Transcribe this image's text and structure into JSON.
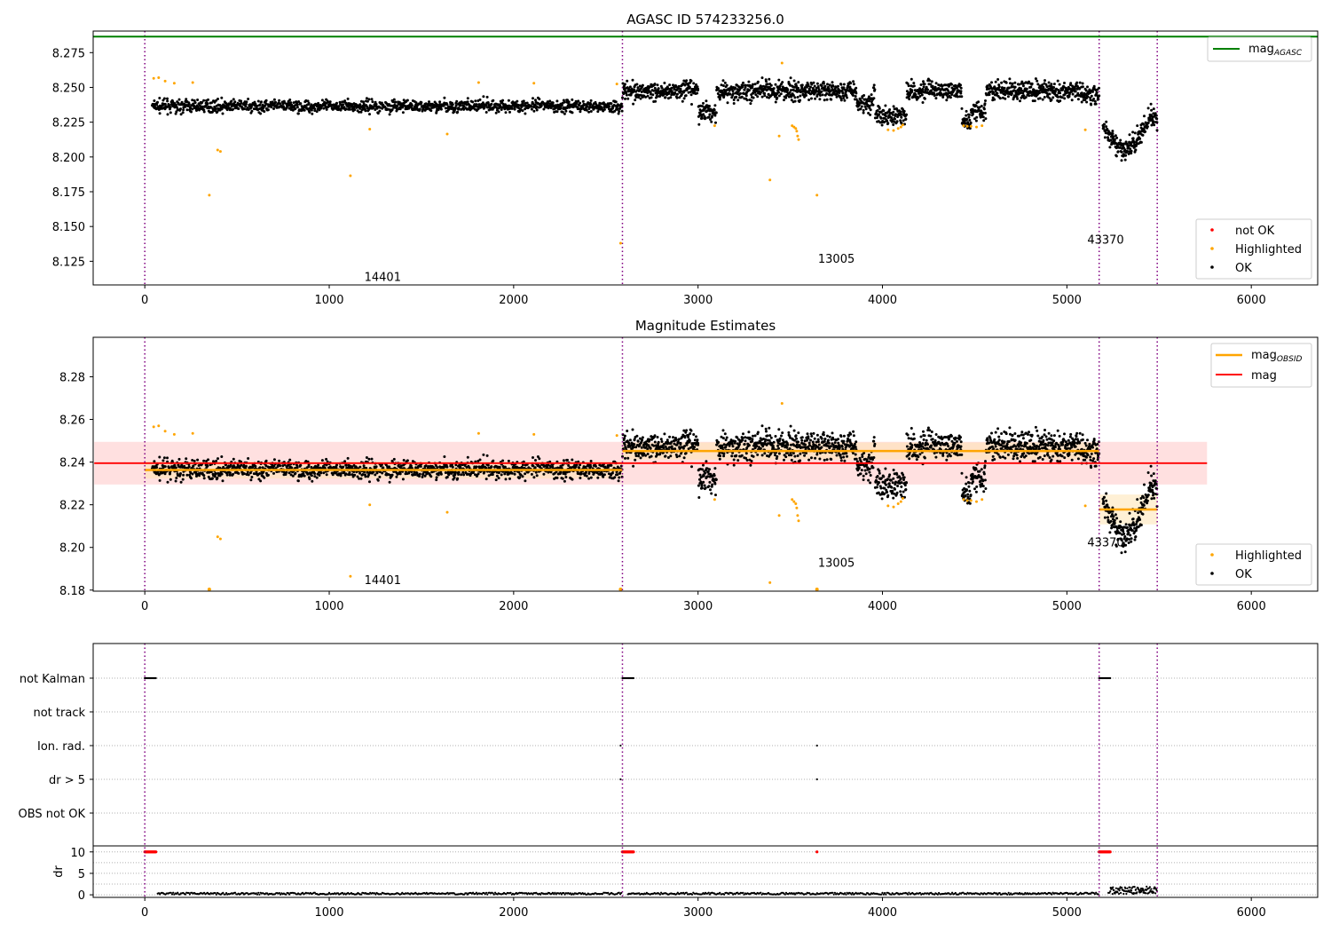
{
  "colors": {
    "ok": "#000000",
    "highlighted": "#ffa500",
    "not_ok": "#ff0000",
    "mag_agasc_line": "#008000",
    "mag_obsid_line": "#ffa500",
    "mag_line": "#ff0000",
    "obs_boundary": "#800080",
    "mag_band": "#ffcccc",
    "obsid_band": "#ffe3b3"
  },
  "chart_data": [
    {
      "type": "scatter",
      "title": "AGASC ID 574233256.0",
      "xlim": [
        -280,
        6360
      ],
      "ylim": [
        8.108,
        8.2905
      ],
      "x_ticks": [
        0,
        1000,
        2000,
        3000,
        4000,
        5000,
        6000
      ],
      "y_ticks": [
        8.125,
        8.15,
        8.175,
        8.2,
        8.225,
        8.25,
        8.275
      ],
      "y_tick_labels": [
        "8.125",
        "8.150",
        "8.175",
        "8.200",
        "8.225",
        "8.250",
        "8.275"
      ],
      "observation_boundaries": [
        0,
        2590,
        5175,
        5490
      ],
      "observation_labels": [
        {
          "obsid": "14401",
          "x": 1290,
          "y": 8.114
        },
        {
          "obsid": "13005",
          "x": 3750,
          "y": 8.127
        },
        {
          "obsid": "43370",
          "x": 5210,
          "y": 8.141
        }
      ],
      "reference_lines": [
        {
          "name": "mag_AGASC",
          "y": 8.2865
        }
      ],
      "legend": {
        "position": "bottom-right",
        "entries": [
          "not OK",
          "Highlighted",
          "OK"
        ]
      },
      "line_legend": {
        "position": "top-right",
        "entries": [
          {
            "label": "mag",
            "subscript": "AGASC"
          }
        ]
      }
    },
    {
      "type": "scatter",
      "title": "Magnitude Estimates",
      "xlim": [
        -280,
        6360
      ],
      "ylim": [
        8.1795,
        8.2985
      ],
      "x_ticks": [
        0,
        1000,
        2000,
        3000,
        4000,
        5000,
        6000
      ],
      "y_ticks": [
        8.18,
        8.2,
        8.22,
        8.24,
        8.26,
        8.28
      ],
      "y_tick_labels": [
        "8.18",
        "8.20",
        "8.22",
        "8.24",
        "8.26",
        "8.28"
      ],
      "observation_boundaries": [
        0,
        2590,
        5175,
        5490
      ],
      "observation_labels": [
        {
          "obsid": "14401",
          "x": 1290,
          "y": 8.185
        },
        {
          "obsid": "13005",
          "x": 3750,
          "y": 8.193
        },
        {
          "obsid": "43370",
          "x": 5210,
          "y": 8.2025
        }
      ],
      "mag": {
        "value": 8.2395,
        "band": [
          8.2295,
          8.2495
        ],
        "x_range": [
          0,
          5760
        ]
      },
      "mag_obsid": [
        {
          "obsid": "14401",
          "value": 8.2363,
          "x_range": [
            0,
            2590
          ]
        },
        {
          "obsid": "13005",
          "value": 8.2452,
          "x_range": [
            2590,
            5175
          ]
        },
        {
          "obsid": "43370",
          "value": 8.2178,
          "x_range": [
            5175,
            5490
          ]
        }
      ],
      "legend": {
        "position": "bottom-right",
        "entries": [
          "Highlighted",
          "OK"
        ]
      },
      "line_legend": {
        "position": "top-right",
        "entries": [
          {
            "label": "mag",
            "subscript": "OBSID"
          },
          {
            "label": "mag",
            "subscript": ""
          }
        ]
      }
    },
    {
      "type": "scatter",
      "title": "",
      "xlim": [
        -280,
        6360
      ],
      "x_ticks": [
        0,
        1000,
        2000,
        3000,
        4000,
        5000,
        6000
      ],
      "categories": [
        "not Kalman",
        "not track",
        "Ion. rad.",
        "dr > 5",
        "OBS not OK"
      ],
      "observation_boundaries": [
        0,
        2590,
        5175,
        5490
      ],
      "flag_points": {
        "not Kalman": [
          [
            0,
            60
          ],
          [
            2590,
            2650
          ],
          [
            5175,
            5235
          ]
        ],
        "not track": [],
        "Ion. rad.": [
          2580,
          3645
        ],
        "dr > 5": [
          2580,
          3645
        ],
        "OBS not OK": []
      }
    },
    {
      "type": "scatter",
      "title": "",
      "ylabel": "dr",
      "xlim": [
        -280,
        6360
      ],
      "ylim": [
        -0.6,
        11.4
      ],
      "x_ticks": [
        0,
        1000,
        2000,
        3000,
        4000,
        5000,
        6000
      ],
      "x_tick_labels": [
        "0",
        "1000",
        "2000",
        "3000",
        "4000",
        "5000",
        "6000"
      ],
      "y_ticks": [
        0,
        5,
        10
      ],
      "y_tick_labels": [
        "0",
        "5",
        "10"
      ],
      "capped_value": 10,
      "capped_segments": [
        [
          0,
          60
        ],
        [
          2590,
          2650
        ],
        [
          5175,
          5235
        ],
        [
          3645,
          3645
        ]
      ],
      "baseline_range": [
        0.05,
        0.5
      ],
      "tail_segment": {
        "x_range": [
          5235,
          5490
        ],
        "y_range": [
          0.2,
          1.9
        ]
      }
    }
  ]
}
